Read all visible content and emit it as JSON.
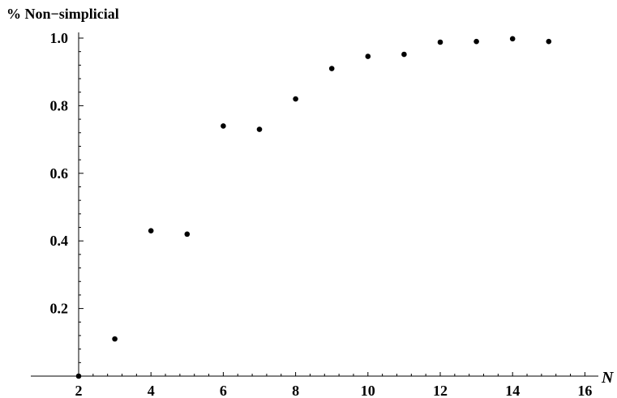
{
  "chart_data": {
    "type": "scatter",
    "ylabel": "% Non−simplicial",
    "xlabel": "N",
    "xlim": [
      1.45,
      16
    ],
    "ylim": [
      0,
      1.0
    ],
    "x_ticks": [
      "2",
      "4",
      "6",
      "8",
      "10",
      "12",
      "14",
      "16"
    ],
    "y_ticks": [
      "0.2",
      "0.4",
      "0.6",
      "0.8",
      "1.0"
    ],
    "grid": false,
    "series": [
      {
        "x": [
          2,
          3,
          4,
          5,
          6,
          7,
          8,
          9,
          10,
          11,
          12,
          13,
          14,
          15
        ],
        "y": [
          0.0,
          0.11,
          0.43,
          0.42,
          0.74,
          0.73,
          0.82,
          0.91,
          0.946,
          0.952,
          0.988,
          0.99,
          0.998,
          0.99
        ]
      }
    ]
  }
}
